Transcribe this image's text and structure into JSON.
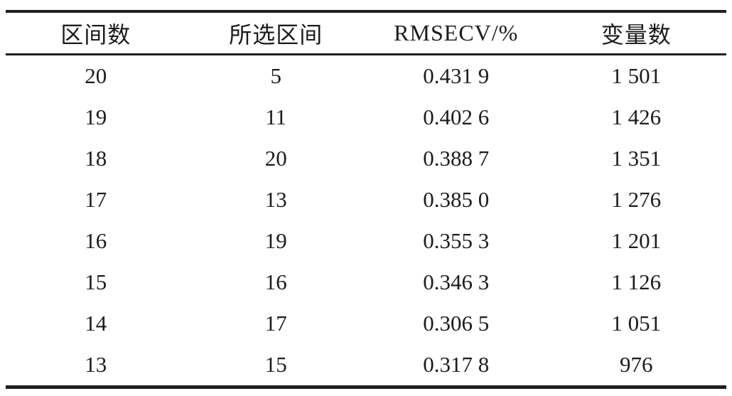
{
  "colors": {
    "text": "#1c1c1c",
    "rule": "#231f20",
    "background": "#ffffff"
  },
  "table": {
    "headers": [
      "区间数",
      "所选区间",
      "RMSECV/%",
      "变量数"
    ],
    "rows": [
      [
        "20",
        "5",
        "0.431 9",
        "1 501"
      ],
      [
        "19",
        "11",
        "0.402 6",
        "1 426"
      ],
      [
        "18",
        "20",
        "0.388 7",
        "1 351"
      ],
      [
        "17",
        "13",
        "0.385 0",
        "1 276"
      ],
      [
        "16",
        "19",
        "0.355 3",
        "1 201"
      ],
      [
        "15",
        "16",
        "0.346 3",
        "1 126"
      ],
      [
        "14",
        "17",
        "0.306 5",
        "1 051"
      ],
      [
        "13",
        "15",
        "0.317 8",
        "976"
      ]
    ]
  }
}
